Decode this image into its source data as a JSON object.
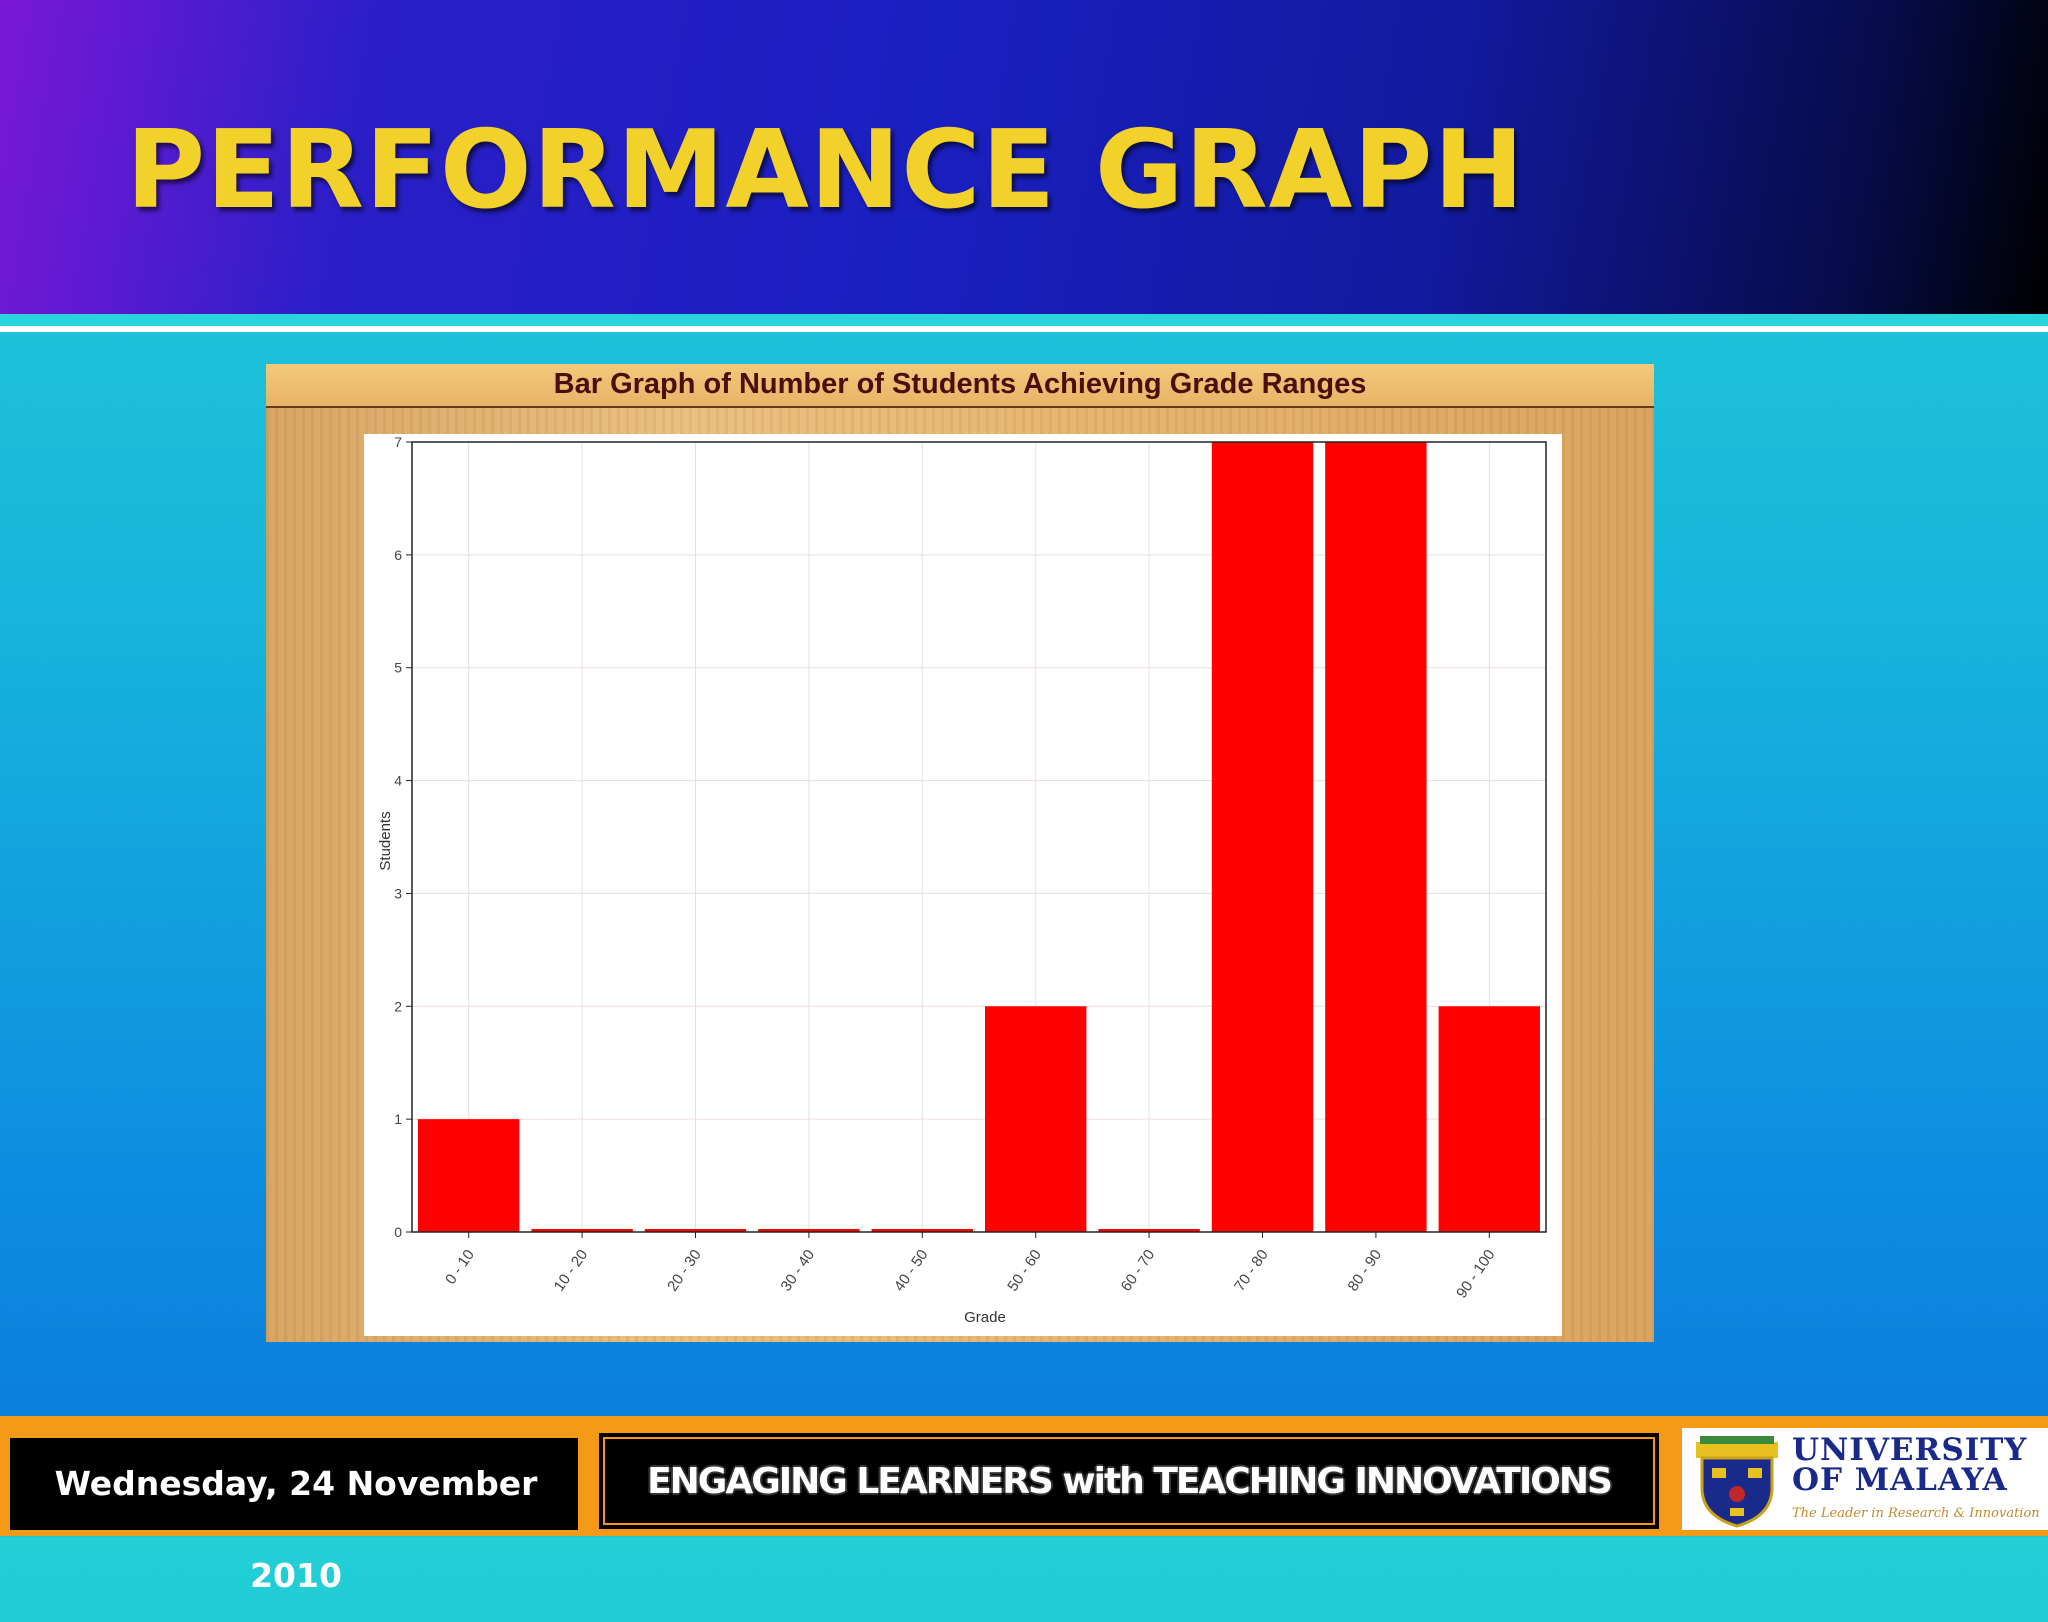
{
  "slide": {
    "title": "PERFORMANCE GRAPH"
  },
  "chart_data": {
    "type": "bar",
    "title": "Bar Graph of Number of Students Achieving Grade Ranges",
    "xlabel": "Grade",
    "ylabel": "Students",
    "categories": [
      "0 - 10",
      "10 - 20",
      "20 - 30",
      "30 - 40",
      "40 - 50",
      "50 - 60",
      "60 - 70",
      "70 - 80",
      "80 - 90",
      "90 - 100"
    ],
    "values": [
      1,
      0,
      0,
      0,
      0,
      2,
      0,
      7,
      7,
      2
    ],
    "ylim": [
      0,
      7
    ],
    "yticks": [
      0,
      1,
      2,
      3,
      4,
      5,
      6,
      7
    ],
    "bar_color": "#ff0000",
    "grid": true
  },
  "footer": {
    "date": "Wednesday, 24 November 2010",
    "tagline": "ENGAGING LEARNERS with TEACHING INNOVATIONS",
    "logo_line1": "UNIVERSITY",
    "logo_line2": "OF MALAYA",
    "logo_motto": "The Leader in Research & Innovation"
  },
  "colors": {
    "title_yellow": "#f2d22a",
    "footer_orange": "#f59a16",
    "bar_red": "#ff0000"
  }
}
